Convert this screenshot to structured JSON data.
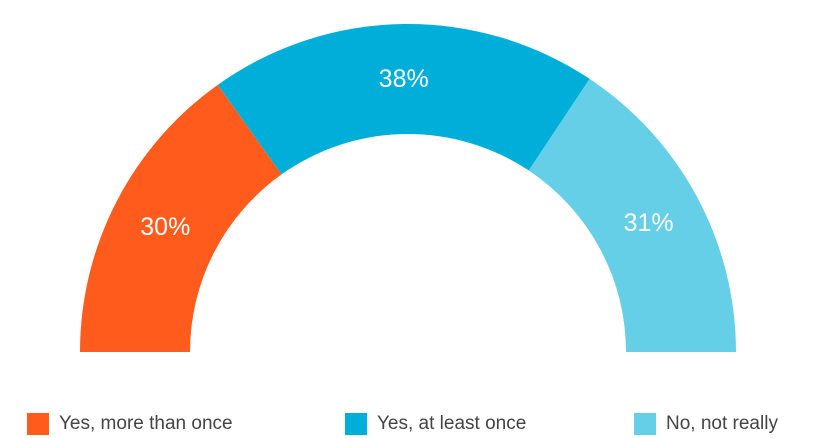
{
  "chart_data": {
    "type": "pie",
    "variant": "half-donut",
    "title": "",
    "categories": [
      "Yes, more than once",
      "Yes, at least once",
      "No, not really"
    ],
    "values": [
      30,
      38,
      31
    ],
    "value_labels": [
      "30%",
      "38%",
      "31%"
    ],
    "unit": "%",
    "colors": [
      "#ff5b1c",
      "#00afd9",
      "#66cfe8"
    ],
    "legend": {
      "placement": "bottom",
      "items": [
        {
          "label": "Yes, more than once",
          "color": "#ff5b1c"
        },
        {
          "label": "Yes, at least once",
          "color": "#00afd9"
        },
        {
          "label": "No, not really",
          "color": "#66cfe8"
        }
      ]
    }
  }
}
